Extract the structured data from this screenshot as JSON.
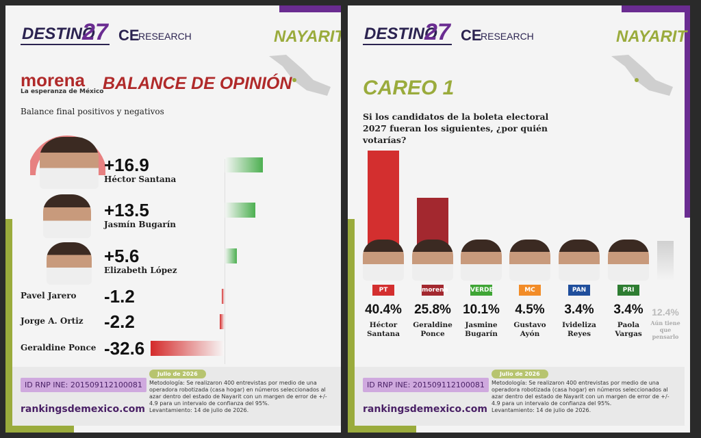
{
  "panels": [
    {
      "brand": "DESTINO",
      "brand_num": "27",
      "partner": "CE",
      "partner2": "RESEARCH",
      "region": "NAYARIT",
      "id": "ID RNP INE: 201509112100081",
      "date": "Julio de 2026",
      "method": "Metodología: Se realizaron 400 entrevistas por medio de una operadora robotizada (casa hogar) en números seleccionados al azar dentro del estado de Nayarit con un margen de error de +/- 4.9 para un intervalo de confianza del 95%.",
      "survey_date": "Levantamiento: 14 de julio de 2026.",
      "site": "rankingsdemexico.com",
      "party": "morena",
      "party_motto": "La esperanza de México"
    },
    {
      "brand": "DESTINO",
      "brand_num": "27",
      "partner": "CE",
      "partner2": "RESEARCH",
      "region": "NAYARIT",
      "id": "ID RNP INE: 201509112100081",
      "date": "Julio de 2026",
      "method": "Metodología: Se realizaron 400 entrevistas por medio de una operadora robotizada (casa hogar) en números seleccionados al azar dentro del estado de Nayarit con un margen de error de +/- 4.9 para un intervalo de confianza del 95%.",
      "survey_date": "Levantamiento: 14 de julio de 2026.",
      "site": "rankingsdemexico.com"
    }
  ],
  "chart_data": [
    {
      "type": "hbar",
      "title": "BALANCE DE OPINIÓN",
      "subtitle": "Balance final positivos y negativos",
      "categories": [
        "Héctor Santana",
        "Jasmín Bugarín",
        "Elizabeth López",
        "Pavel Jarero",
        "Jorge A. Ortiz",
        "Geraldine Ponce"
      ],
      "values": [
        16.9,
        13.5,
        5.6,
        -1.2,
        -2.2,
        -32.6
      ],
      "value_labels": [
        "+16.9",
        "+13.5",
        "+5.6",
        "-1.2",
        "-2.2",
        "-32.6"
      ],
      "positive_color": "#4caf50",
      "negative_color": "#d42a2a"
    },
    {
      "type": "bar",
      "title": "CAREO 1",
      "subtitle": "Si los candidatos de la boleta electoral 2027 fueran los siguientes, ¿por quién votarías?",
      "categories": [
        "Héctor Santana",
        "Geraldine Ponce",
        "Jasmine Bugarín",
        "Gustavo Ayón",
        "Ivideliza Reyes",
        "Paola Vargas",
        "Aún tiene que pensarlo"
      ],
      "values": [
        40.4,
        25.8,
        10.1,
        4.5,
        3.4,
        3.4,
        12.4
      ],
      "value_labels": [
        "40.4%",
        "25.8%",
        "10.1%",
        "4.5%",
        "3.4%",
        "3.4%",
        "12.4%"
      ],
      "parties": [
        "PT",
        "morena",
        "VERDE",
        "MC",
        "PAN",
        "PRI",
        null
      ],
      "colors": [
        "#d32f2f",
        "#a3282f",
        "#3fa535",
        "#f28c28",
        "#1f4e9c",
        "#2e7d32",
        "#d0d0d0"
      ]
    }
  ]
}
